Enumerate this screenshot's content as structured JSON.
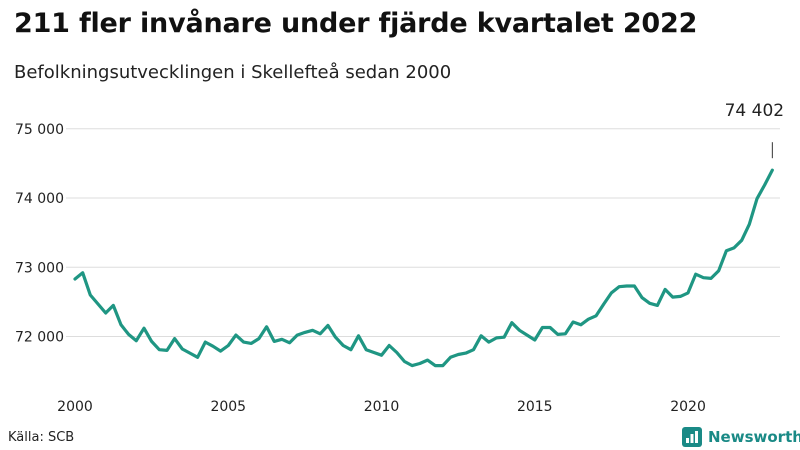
{
  "header": {
    "title": "211 fler invånare under fjärde kvartalet 2022",
    "subtitle": "Befolkningsutvecklingen i Skellefteå sedan 2000"
  },
  "footer": {
    "source": "Källa: SCB",
    "brand": "Newsworthy"
  },
  "colors": {
    "line": "#1f9683",
    "grid": "#dddddd",
    "brand": "#1a8a86"
  },
  "icons": {
    "brand": "newsworthy-logo-icon"
  },
  "chart_data": {
    "type": "line",
    "title": "211 fler invånare under fjärde kvartalet 2022",
    "subtitle": "Befolkningsutvecklingen i Skellefteå sedan 2000",
    "xlabel": "",
    "ylabel": "",
    "xlim": [
      2000,
      2023
    ],
    "ylim": [
      71300,
      75300
    ],
    "yticks": [
      {
        "value": 72000,
        "label": "72 000"
      },
      {
        "value": 73000,
        "label": "73 000"
      },
      {
        "value": 74000,
        "label": "74 000"
      },
      {
        "value": 75000,
        "label": "75 000"
      }
    ],
    "xticks": [
      {
        "value": 2000,
        "label": "2000"
      },
      {
        "value": 2005,
        "label": "2005"
      },
      {
        "value": 2010,
        "label": "2010"
      },
      {
        "value": 2015,
        "label": "2015"
      },
      {
        "value": 2020,
        "label": "2020"
      }
    ],
    "grid": true,
    "series": [
      {
        "x": [
          "2000K1",
          "2000K2",
          "2000K3",
          "2000K4",
          "2001K1",
          "2001K2",
          "2001K3",
          "2001K4",
          "2002K1",
          "2002K2",
          "2002K3",
          "2002K4",
          "2003K1",
          "2003K2",
          "2003K3",
          "2003K4",
          "2004K1",
          "2004K2",
          "2004K3",
          "2004K4",
          "2005K1",
          "2005K2",
          "2005K3",
          "2005K4",
          "2006K1",
          "2006K2",
          "2006K3",
          "2006K4",
          "2007K1",
          "2007K2",
          "2007K3",
          "2007K4",
          "2008K1",
          "2008K2",
          "2008K3",
          "2008K4",
          "2009K1",
          "2009K2",
          "2009K3",
          "2009K4",
          "2010K1",
          "2010K2",
          "2010K3",
          "2010K4",
          "2011K1",
          "2011K2",
          "2011K3",
          "2011K4",
          "2012K1",
          "2012K2",
          "2012K3",
          "2012K4",
          "2013K1",
          "2013K2",
          "2013K3",
          "2013K4",
          "2014K1",
          "2014K2",
          "2014K3",
          "2014K4",
          "2015K1",
          "2015K2",
          "2015K3",
          "2015K4",
          "2016K1",
          "2016K2",
          "2016K3",
          "2016K4",
          "2017K1",
          "2017K2",
          "2017K3",
          "2017K4",
          "2018K1",
          "2018K2",
          "2018K3",
          "2018K4",
          "2019K1",
          "2019K2",
          "2019K3",
          "2019K4",
          "2020K1",
          "2020K2",
          "2020K3",
          "2020K4",
          "2021K1",
          "2021K2",
          "2021K3",
          "2021K4",
          "2022K1",
          "2022K2",
          "2022K3",
          "2022K4"
        ],
        "values": [
          72830,
          72920,
          72600,
          72470,
          72340,
          72450,
          72170,
          72030,
          71940,
          72120,
          71930,
          71810,
          71800,
          71970,
          71820,
          71760,
          71700,
          71920,
          71860,
          71790,
          71870,
          72020,
          71920,
          71900,
          71970,
          72140,
          71930,
          71960,
          71910,
          72020,
          72060,
          72090,
          72040,
          72160,
          71990,
          71870,
          71810,
          72010,
          71810,
          71770,
          71730,
          71870,
          71770,
          71640,
          71580,
          71610,
          71660,
          71580,
          71580,
          71700,
          71740,
          71760,
          71810,
          72010,
          71920,
          71980,
          71990,
          72200,
          72090,
          72020,
          71950,
          72130,
          72130,
          72030,
          72040,
          72210,
          72170,
          72250,
          72300,
          72470,
          72630,
          72720,
          72730,
          72730,
          72560,
          72480,
          72450,
          72680,
          72570,
          72580,
          72630,
          72900,
          72850,
          72840,
          72950,
          73240,
          73280,
          73390,
          73620,
          73990,
          74190,
          74402
        ]
      }
    ],
    "annotations": [
      {
        "x": "2022K4",
        "value": 74402,
        "label": "74 402"
      }
    ]
  }
}
